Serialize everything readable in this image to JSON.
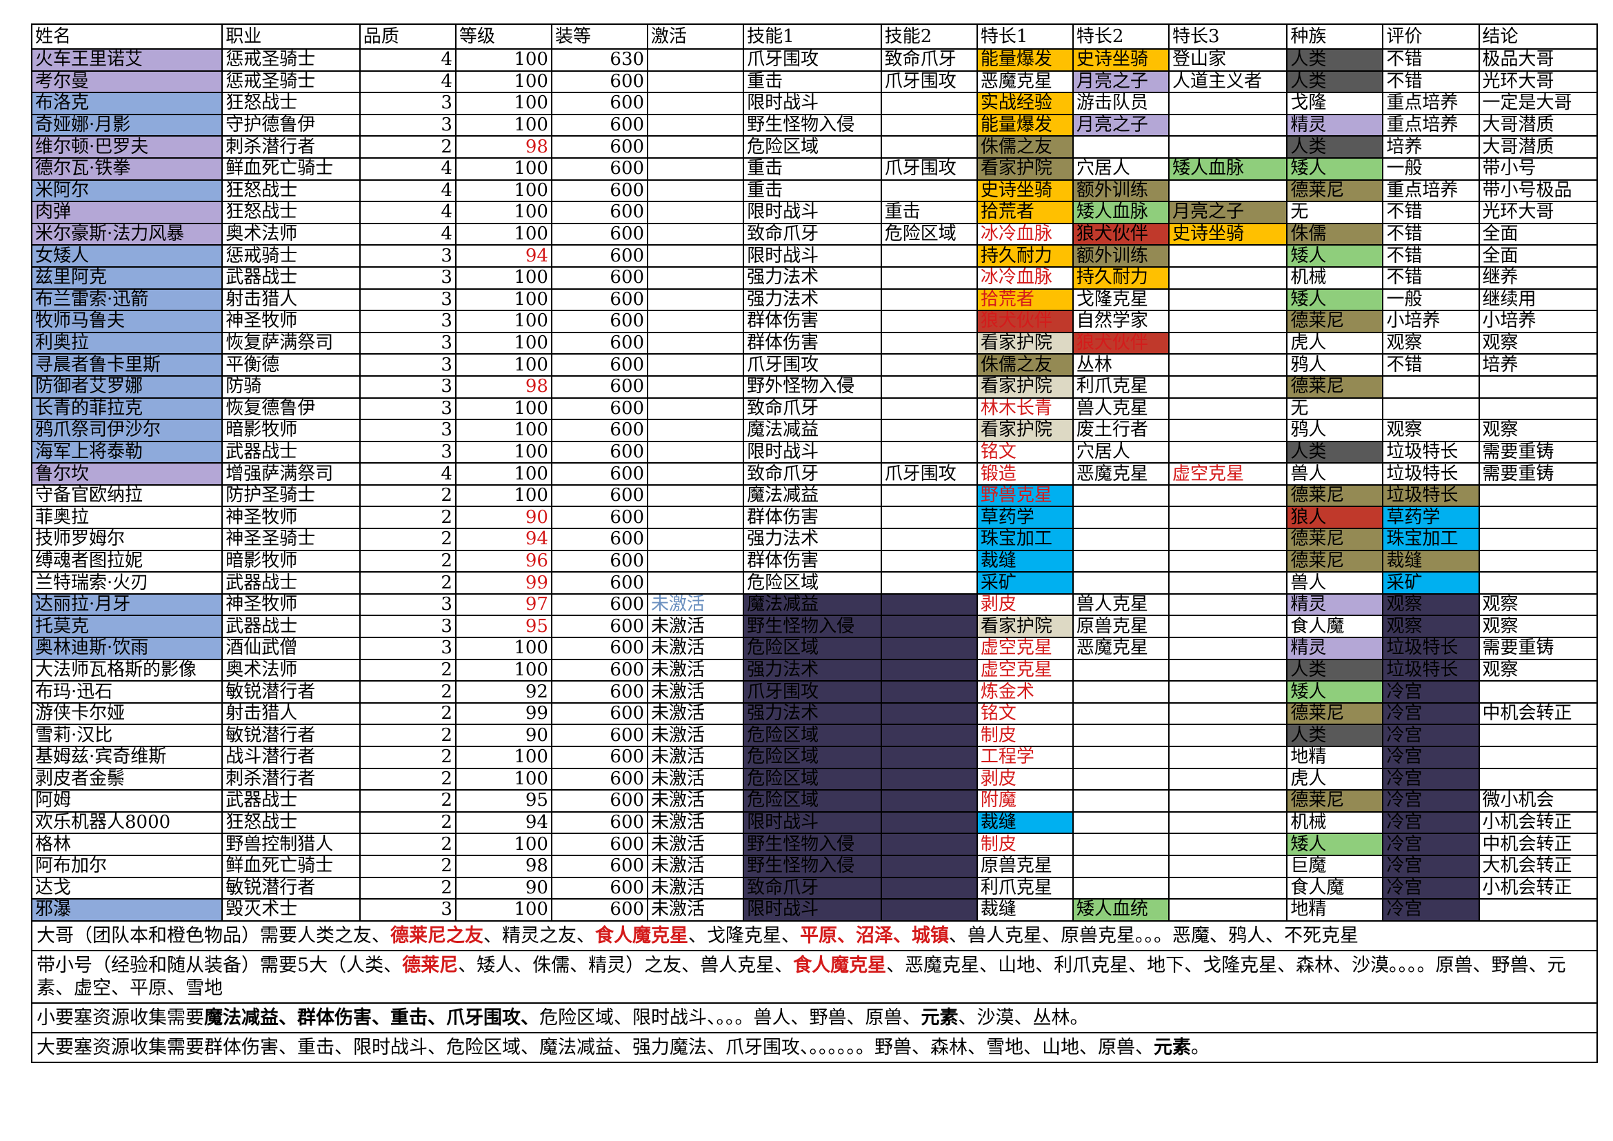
{
  "colors": {
    "blue": "#8eaadb",
    "purple": "#b4a7d6",
    "orange": "#ffc000",
    "green": "#8fce7c",
    "olive": "#948a54",
    "darkred": "#c0392b",
    "gray": "#595959",
    "beige": "#ddd9c4",
    "cyan": "#00b0f0",
    "navy": "#3a3456",
    "red_text": "#d41b1b",
    "blue_text": "#6a8fbf"
  },
  "columns": [
    "姓名",
    "职业",
    "品质",
    "等级",
    "装等",
    "激活",
    "技能1",
    "技能2",
    "特长1",
    "特长2",
    "特长3",
    "种族",
    "评价",
    "结论"
  ],
  "rows": [
    [
      "火车王里诺艾",
      "惩戒圣骑士",
      "4",
      "100",
      "630",
      "",
      "爪牙围攻",
      "致命爪牙",
      "能量爆发",
      "史诗坐骑",
      "登山家",
      "人类",
      "不错",
      "极品大哥"
    ],
    [
      "考尔曼",
      "惩戒圣骑士",
      "4",
      "100",
      "600",
      "",
      "重击",
      "爪牙围攻",
      "恶魔克星",
      "月亮之子",
      "人道主义者",
      "人类",
      "不错",
      "光环大哥"
    ],
    [
      "布洛克",
      "狂怒战士",
      "3",
      "100",
      "600",
      "",
      "限时战斗",
      "",
      "实战经验",
      "游击队员",
      "",
      "戈隆",
      "重点培养",
      "一定是大哥"
    ],
    [
      "奇娅娜·月影",
      "守护德鲁伊",
      "3",
      "100",
      "600",
      "",
      "野生怪物入侵",
      "",
      "能量爆发",
      "月亮之子",
      "",
      "精灵",
      "重点培养",
      "大哥潜质"
    ],
    [
      "维尔顿·巴罗夫",
      "刺杀潜行者",
      "2",
      "98",
      "600",
      "",
      "危险区域",
      "",
      "侏儒之友",
      "",
      "",
      "人类",
      "培养",
      "大哥潜质"
    ],
    [
      "德尔瓦·铁拳",
      "鲜血死亡骑士",
      "4",
      "100",
      "600",
      "",
      "重击",
      "爪牙围攻",
      "看家护院",
      "穴居人",
      "矮人血脉",
      "矮人",
      "一般",
      "带小号"
    ],
    [
      "米阿尔",
      "狂怒战士",
      "4",
      "100",
      "600",
      "",
      "重击",
      "",
      "史诗坐骑",
      "额外训练",
      "",
      "德莱尼",
      "重点培养",
      "带小号极品"
    ],
    [
      "肉弹",
      "狂怒战士",
      "4",
      "100",
      "600",
      "",
      "限时战斗",
      "重击",
      "拾荒者",
      "矮人血脉",
      "月亮之子",
      "无",
      "不错",
      "光环大哥"
    ],
    [
      "米尔豪斯·法力风暴",
      "奥术法师",
      "4",
      "100",
      "600",
      "",
      "致命爪牙",
      "危险区域",
      "冰冷血脉",
      "狼犬伙伴",
      "史诗坐骑",
      "侏儒",
      "不错",
      "全面"
    ],
    [
      "女矮人",
      "惩戒骑士",
      "3",
      "94",
      "600",
      "",
      "限时战斗",
      "",
      "持久耐力",
      "额外训练",
      "",
      "矮人",
      "不错",
      "全面"
    ],
    [
      "兹里阿克",
      "武器战士",
      "3",
      "100",
      "600",
      "",
      "强力法术",
      "",
      "冰冷血脉",
      "持久耐力",
      "",
      "机械",
      "不错",
      "继养"
    ],
    [
      "布兰雷索·迅箭",
      "射击猎人",
      "3",
      "100",
      "600",
      "",
      "强力法术",
      "",
      "拾荒者",
      "戈隆克星",
      "",
      "矮人",
      "一般",
      "继续用"
    ],
    [
      "牧师马鲁夫",
      "神圣牧师",
      "3",
      "100",
      "600",
      "",
      "群体伤害",
      "",
      "狼犬伙伴",
      "自然学家",
      "",
      "德莱尼",
      "小培养",
      "小培养"
    ],
    [
      "利奥拉",
      "恢复萨满祭司",
      "3",
      "100",
      "600",
      "",
      "群体伤害",
      "",
      "看家护院",
      "狼犬伙伴",
      "",
      "虎人",
      "观察",
      "观察"
    ],
    [
      "寻晨者鲁卡里斯",
      "平衡德",
      "3",
      "100",
      "600",
      "",
      "爪牙围攻",
      "",
      "侏儒之友",
      "丛林",
      "",
      "鸦人",
      "不错",
      "培养"
    ],
    [
      "防御者艾罗娜",
      "防骑",
      "3",
      "98",
      "600",
      "",
      "野外怪物入侵",
      "",
      "看家护院",
      "利爪克星",
      "",
      "德莱尼",
      "",
      ""
    ],
    [
      "长青的菲拉克",
      "恢复德鲁伊",
      "3",
      "100",
      "600",
      "",
      "致命爪牙",
      "",
      "林木长青",
      "兽人克星",
      "",
      "无",
      "",
      ""
    ],
    [
      "鸦爪祭司伊沙尔",
      "暗影牧师",
      "3",
      "100",
      "600",
      "",
      "魔法减益",
      "",
      "看家护院",
      "废土行者",
      "",
      "鸦人",
      "观察",
      "观察"
    ],
    [
      "海军上将泰勒",
      "武器战士",
      "3",
      "100",
      "600",
      "",
      "限时战斗",
      "",
      "铭文",
      "穴居人",
      "",
      "人类",
      "垃圾特长",
      "需要重铸"
    ],
    [
      "鲁尔坎",
      "增强萨满祭司",
      "4",
      "100",
      "600",
      "",
      "致命爪牙",
      "爪牙围攻",
      "锻造",
      "恶魔克星",
      "虚空克星",
      "兽人",
      "垃圾特长",
      "需要重铸"
    ],
    [
      "守备官欧纳拉",
      "防护圣骑士",
      "2",
      "100",
      "600",
      "",
      "魔法减益",
      "",
      "野兽克星",
      "",
      "",
      "德莱尼",
      "垃圾特长",
      ""
    ],
    [
      "菲奥拉",
      "神圣牧师",
      "2",
      "90",
      "600",
      "",
      "群体伤害",
      "",
      "草药学",
      "",
      "",
      "狼人",
      "草药学",
      ""
    ],
    [
      "技师罗姆尔",
      "神圣圣骑士",
      "2",
      "94",
      "600",
      "",
      "强力法术",
      "",
      "珠宝加工",
      "",
      "",
      "德莱尼",
      "珠宝加工",
      ""
    ],
    [
      "缚魂者图拉妮",
      "暗影牧师",
      "2",
      "96",
      "600",
      "",
      "群体伤害",
      "",
      "裁缝",
      "",
      "",
      "德莱尼",
      "裁缝",
      ""
    ],
    [
      "兰特瑞索·火刃",
      "武器战士",
      "2",
      "99",
      "600",
      "",
      "危险区域",
      "",
      "采矿",
      "",
      "",
      "兽人",
      "采矿",
      ""
    ],
    [
      "达丽拉·月牙",
      "神圣牧师",
      "3",
      "97",
      "600",
      "未激活",
      "魔法减益",
      "",
      "剥皮",
      "兽人克星",
      "",
      "精灵",
      "观察",
      "观察"
    ],
    [
      "托莫克",
      "武器战士",
      "3",
      "95",
      "600",
      "未激活",
      "野生怪物入侵",
      "",
      "看家护院",
      "原兽克星",
      "",
      "食人魔",
      "观察",
      "观察"
    ],
    [
      "奥林迪斯·饮雨",
      "酒仙武僧",
      "3",
      "100",
      "600",
      "未激活",
      "危险区域",
      "",
      "虚空克星",
      "恶魔克星",
      "",
      "精灵",
      "垃圾特长",
      "需要重铸"
    ],
    [
      "大法师瓦格斯的影像",
      "奥术法师",
      "2",
      "100",
      "600",
      "未激活",
      "强力法术",
      "",
      "虚空克星",
      "",
      "",
      "人类",
      "垃圾特长",
      "观察"
    ],
    [
      "布玛·迅石",
      "敏锐潜行者",
      "2",
      "92",
      "600",
      "未激活",
      "爪牙围攻",
      "",
      "炼金术",
      "",
      "",
      "矮人",
      "冷宫",
      ""
    ],
    [
      "游侠卡尔娅",
      "射击猎人",
      "2",
      "99",
      "600",
      "未激活",
      "强力法术",
      "",
      "铭文",
      "",
      "",
      "德莱尼",
      "冷宫",
      "中机会转正"
    ],
    [
      "雪莉·汉比",
      "敏锐潜行者",
      "2",
      "90",
      "600",
      "未激活",
      "危险区域",
      "",
      "制皮",
      "",
      "",
      "人类",
      "冷宫",
      ""
    ],
    [
      "基姆兹·宾奇维斯",
      "战斗潜行者",
      "2",
      "100",
      "600",
      "未激活",
      "危险区域",
      "",
      "工程学",
      "",
      "",
      "地精",
      "冷宫",
      ""
    ],
    [
      "剥皮者金鬃",
      "刺杀潜行者",
      "2",
      "100",
      "600",
      "未激活",
      "危险区域",
      "",
      "剥皮",
      "",
      "",
      "虎人",
      "冷宫",
      ""
    ],
    [
      "阿姆",
      "武器战士",
      "2",
      "95",
      "600",
      "未激活",
      "危险区域",
      "",
      "附魔",
      "",
      "",
      "德莱尼",
      "冷宫",
      "微小机会"
    ],
    [
      "欢乐机器人8000",
      "狂怒战士",
      "2",
      "94",
      "600",
      "未激活",
      "限时战斗",
      "",
      "裁缝",
      "",
      "",
      "机械",
      "冷宫",
      "小机会转正"
    ],
    [
      "格林",
      "野兽控制猎人",
      "2",
      "100",
      "600",
      "未激活",
      "野生怪物入侵",
      "",
      "制皮",
      "",
      "",
      "矮人",
      "冷宫",
      "中机会转正"
    ],
    [
      "阿布加尔",
      "鲜血死亡骑士",
      "2",
      "98",
      "600",
      "未激活",
      "野生怪物入侵",
      "",
      "原兽克星",
      "",
      "",
      "巨魔",
      "冷宫",
      "大机会转正"
    ],
    [
      "达戈",
      "敏锐潜行者",
      "2",
      "90",
      "600",
      "未激活",
      "致命爪牙",
      "",
      "利爪克星",
      "",
      "",
      "食人魔",
      "冷宫",
      "小机会转正"
    ],
    [
      "邪瀑",
      "毁灭术士",
      "3",
      "100",
      "600",
      "未激活",
      "限时战斗",
      "",
      "裁缝",
      "矮人血统",
      "",
      "地精",
      "冷宫",
      ""
    ]
  ],
  "notes": [
    [
      [
        "",
        "大哥（团队本和橙色物品）需要人类之友、"
      ],
      [
        "r",
        "德莱尼之友"
      ],
      [
        "",
        "、精灵之友、"
      ],
      [
        "r",
        "食人魔克星"
      ],
      [
        "",
        "、戈隆克星、"
      ],
      [
        "r",
        "平原、沼泽、城镇"
      ],
      [
        "",
        "、兽人克星、原兽克星。。。恶魔、鸦人、不死克星"
      ]
    ],
    [
      [
        "",
        "带小号（经验和随从装备）需要5大（人类、"
      ],
      [
        "r",
        "德莱尼"
      ],
      [
        "",
        "、矮人、侏儒、精灵）之友、兽人克星、"
      ],
      [
        "r",
        "食人魔克星"
      ],
      [
        "",
        "、恶魔克星、山地、利爪克星、地下、戈隆克星、森林、沙漠。。。。原兽、野兽、元素、虚空、平原、雪地"
      ]
    ],
    [
      [
        "",
        "小要塞资源收集需要"
      ],
      [
        "b",
        "魔法减益、群体伤害、重击、爪牙围攻、"
      ],
      [
        "",
        "危险区域、限时战斗、。。。兽人、野兽、原兽、"
      ],
      [
        "b",
        "元素"
      ],
      [
        "",
        "、沙漠、丛林。"
      ]
    ],
    [
      [
        "",
        "大要塞资源收集需要群体伤害、重击、限时战斗、危险区域、魔法减益、强力魔法、爪牙围攻、。。。。。。野兽、森林、雪地、山地、原兽、"
      ],
      [
        "b",
        "元素"
      ],
      [
        "",
        "。"
      ]
    ]
  ]
}
